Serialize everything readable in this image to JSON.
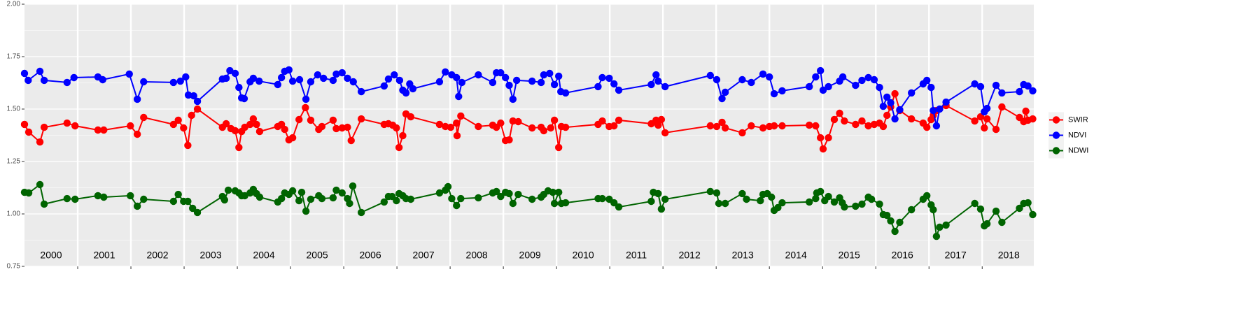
{
  "chart_data": {
    "type": "line",
    "xlim": [
      2000,
      2018.97
    ],
    "ylim": [
      0.75,
      2.0
    ],
    "yticks": [
      0.75,
      {
        "value": 1.0,
        "label": "1.00"
      },
      1.25,
      {
        "value": 1.5,
        "label": "1.50"
      },
      1.75,
      {
        "value": 2.0,
        "label": "2.00"
      }
    ],
    "yminor": [
      0.875,
      1.125,
      1.375,
      1.625,
      1.875
    ],
    "year_breaks": [
      2001,
      2002,
      2003,
      2004,
      2005,
      2006,
      2007,
      2008,
      2009,
      2010,
      2011,
      2012,
      2013,
      2014,
      2015,
      2016,
      2017,
      2018
    ],
    "xticks": [
      {
        "value": 2000.5,
        "label": "2000"
      },
      {
        "value": 2001.5,
        "label": "2001"
      },
      {
        "value": 2002.5,
        "label": "2002"
      },
      {
        "value": 2003.5,
        "label": "2003"
      },
      {
        "value": 2004.5,
        "label": "2004"
      },
      {
        "value": 2005.5,
        "label": "2005"
      },
      {
        "value": 2006.5,
        "label": "2006"
      },
      {
        "value": 2007.5,
        "label": "2007"
      },
      {
        "value": 2008.5,
        "label": "2008"
      },
      {
        "value": 2009.5,
        "label": "2009"
      },
      {
        "value": 2010.5,
        "label": "2010"
      },
      {
        "value": 2011.5,
        "label": "2011"
      },
      {
        "value": 2012.5,
        "label": "2012"
      },
      {
        "value": 2013.5,
        "label": "2013"
      },
      {
        "value": 2014.5,
        "label": "2014"
      },
      {
        "value": 2015.5,
        "label": "2015"
      },
      {
        "value": 2016.5,
        "label": "2016"
      },
      {
        "value": 2017.5,
        "label": "2017"
      },
      {
        "value": 2018.5,
        "label": "2018"
      }
    ],
    "grid": true,
    "legend": "right",
    "series": [
      {
        "name": "SWIR",
        "color": "#ff0000",
        "x": [
          2000,
          2000.08,
          2000.29,
          2000.37,
          2000.8,
          2000.95,
          2001.38,
          2001.49,
          2001.99,
          2002.12,
          2002.24,
          2002.8,
          2002.89,
          2002.99,
          2003.07,
          2003.14,
          2003.25,
          2003.72,
          2003.79,
          2003.88,
          2003.96,
          2004.03,
          2004.08,
          2004.14,
          2004.24,
          2004.3,
          2004.36,
          2004.42,
          2004.76,
          2004.83,
          2004.89,
          2004.97,
          2005.04,
          2005.16,
          2005.28,
          2005.38,
          2005.53,
          2005.59,
          2005.8,
          2005.86,
          2005.97,
          2006.07,
          2006.14,
          2006.33,
          2006.76,
          2006.84,
          2006.92,
          2006.99,
          2007.04,
          2007.11,
          2007.17,
          2007.26,
          2007.8,
          2007.91,
          2008.01,
          2008.12,
          2008.13,
          2008.2,
          2008.53,
          2008.8,
          2008.87,
          2008.95,
          2009.04,
          2009.11,
          2009.18,
          2009.28,
          2009.54,
          2009.71,
          2009.76,
          2009.89,
          2009.96,
          2010.04,
          2010.09,
          2010.17,
          2010.78,
          2010.86,
          2010.99,
          2011.08,
          2011.17,
          2011.78,
          2011.87,
          2011.91,
          2011.97,
          2012.04,
          2012.89,
          2013.01,
          2013.11,
          2013.17,
          2013.49,
          2013.66,
          2013.88,
          2014,
          2014.09,
          2014.24,
          2014.75,
          2014.87,
          2014.96,
          2015.01,
          2015.11,
          2015.22,
          2015.32,
          2015.41,
          2015.62,
          2015.74,
          2015.86,
          2015.97,
          2016.07,
          2016.14,
          2016.21,
          2016.28,
          2016.36,
          2016.45,
          2016.67,
          2016.89,
          2016.96,
          2017.04,
          2017.08,
          2017.14,
          2017.32,
          2017.86,
          2017.97,
          2018.04,
          2018.09,
          2018.26,
          2018.37,
          2018.7,
          2018.78,
          2018.82,
          2018.86,
          2018.95
        ],
        "values": [
          1.427,
          1.39,
          1.343,
          1.413,
          1.433,
          1.42,
          1.4,
          1.4,
          1.42,
          1.38,
          1.46,
          1.427,
          1.447,
          1.41,
          1.327,
          1.47,
          1.5,
          1.413,
          1.43,
          1.407,
          1.397,
          1.317,
          1.393,
          1.413,
          1.427,
          1.453,
          1.427,
          1.393,
          1.417,
          1.427,
          1.403,
          1.353,
          1.363,
          1.45,
          1.507,
          1.447,
          1.403,
          1.417,
          1.447,
          1.407,
          1.41,
          1.413,
          1.35,
          1.453,
          1.427,
          1.43,
          1.423,
          1.41,
          1.317,
          1.373,
          1.477,
          1.463,
          1.427,
          1.417,
          1.413,
          1.433,
          1.373,
          1.467,
          1.417,
          1.423,
          1.413,
          1.433,
          1.35,
          1.353,
          1.443,
          1.44,
          1.41,
          1.413,
          1.397,
          1.41,
          1.447,
          1.317,
          1.417,
          1.413,
          1.427,
          1.443,
          1.417,
          1.42,
          1.447,
          1.43,
          1.447,
          1.423,
          1.45,
          1.387,
          1.42,
          1.417,
          1.437,
          1.41,
          1.387,
          1.42,
          1.41,
          1.417,
          1.42,
          1.42,
          1.423,
          1.42,
          1.363,
          1.31,
          1.363,
          1.45,
          1.48,
          1.443,
          1.427,
          1.443,
          1.42,
          1.427,
          1.433,
          1.417,
          1.47,
          1.51,
          1.573,
          1.493,
          1.453,
          1.433,
          1.413,
          1.45,
          1.47,
          1.493,
          1.517,
          1.443,
          1.463,
          1.41,
          1.453,
          1.403,
          1.51,
          1.46,
          1.44,
          1.49,
          1.447,
          1.453
        ]
      },
      {
        "name": "NDVI",
        "color": "#0000ff",
        "x": [
          2000,
          2000.07,
          2000.29,
          2000.37,
          2000.8,
          2000.93,
          2001.38,
          2001.47,
          2001.97,
          2002.12,
          2002.24,
          2002.8,
          2002.93,
          2003.03,
          2003.08,
          2003.18,
          2003.25,
          2003.72,
          2003.79,
          2003.86,
          2003.96,
          2004.03,
          2004.08,
          2004.13,
          2004.24,
          2004.3,
          2004.41,
          2004.76,
          2004.83,
          2004.89,
          2004.97,
          2005.04,
          2005.17,
          2005.29,
          2005.38,
          2005.51,
          2005.62,
          2005.8,
          2005.86,
          2005.97,
          2006.07,
          2006.18,
          2006.33,
          2006.76,
          2006.84,
          2006.95,
          2007.05,
          2007.11,
          2007.17,
          2007.24,
          2007.3,
          2007.8,
          2007.91,
          2008.03,
          2008.12,
          2008.16,
          2008.22,
          2008.53,
          2008.8,
          2008.87,
          2008.95,
          2009.04,
          2009.11,
          2009.18,
          2009.25,
          2009.54,
          2009.71,
          2009.76,
          2009.87,
          2009.96,
          2010.04,
          2010.08,
          2010.17,
          2010.78,
          2010.86,
          2010.99,
          2011.08,
          2011.17,
          2011.78,
          2011.87,
          2011.91,
          2012.04,
          2012.89,
          2013.01,
          2013.11,
          2013.17,
          2013.49,
          2013.66,
          2013.88,
          2014,
          2014.09,
          2014.24,
          2014.75,
          2014.87,
          2014.96,
          2015.01,
          2015.11,
          2015.32,
          2015.38,
          2015.62,
          2015.74,
          2015.86,
          2015.97,
          2016.07,
          2016.14,
          2016.21,
          2016.28,
          2016.36,
          2016.45,
          2016.67,
          2016.89,
          2016.96,
          2017.04,
          2017.08,
          2017.14,
          2017.2,
          2017.32,
          2017.86,
          2017.97,
          2018.04,
          2018.09,
          2018.26,
          2018.37,
          2018.7,
          2018.78,
          2018.86,
          2018.95
        ],
        "values": [
          1.67,
          1.637,
          1.68,
          1.637,
          1.627,
          1.65,
          1.653,
          1.64,
          1.667,
          1.547,
          1.63,
          1.627,
          1.633,
          1.653,
          1.567,
          1.563,
          1.537,
          1.643,
          1.647,
          1.683,
          1.67,
          1.603,
          1.553,
          1.55,
          1.63,
          1.647,
          1.633,
          1.617,
          1.65,
          1.68,
          1.687,
          1.633,
          1.64,
          1.547,
          1.63,
          1.663,
          1.647,
          1.637,
          1.667,
          1.673,
          1.647,
          1.63,
          1.583,
          1.61,
          1.643,
          1.663,
          1.637,
          1.59,
          1.577,
          1.62,
          1.597,
          1.63,
          1.677,
          1.663,
          1.65,
          1.56,
          1.627,
          1.663,
          1.627,
          1.673,
          1.673,
          1.65,
          1.613,
          1.547,
          1.637,
          1.633,
          1.627,
          1.663,
          1.67,
          1.617,
          1.657,
          1.583,
          1.577,
          1.607,
          1.65,
          1.647,
          1.62,
          1.59,
          1.617,
          1.663,
          1.633,
          1.607,
          1.66,
          1.64,
          1.55,
          1.58,
          1.64,
          1.627,
          1.667,
          1.653,
          1.573,
          1.587,
          1.607,
          1.653,
          1.683,
          1.59,
          1.607,
          1.633,
          1.653,
          1.613,
          1.637,
          1.65,
          1.64,
          1.603,
          1.513,
          1.557,
          1.53,
          1.453,
          1.497,
          1.577,
          1.62,
          1.637,
          1.603,
          1.493,
          1.42,
          1.5,
          1.533,
          1.62,
          1.607,
          1.487,
          1.503,
          1.613,
          1.577,
          1.583,
          1.617,
          1.61,
          1.587
        ]
      },
      {
        "name": "NDWI",
        "color": "#006400",
        "x": [
          2000,
          2000.08,
          2000.29,
          2000.37,
          2000.8,
          2000.95,
          2001.38,
          2001.49,
          2001.99,
          2002.12,
          2002.24,
          2002.8,
          2002.89,
          2002.99,
          2003.07,
          2003.16,
          2003.25,
          2003.72,
          2003.76,
          2003.83,
          2003.96,
          2004.03,
          2004.08,
          2004.14,
          2004.24,
          2004.3,
          2004.36,
          2004.42,
          2004.76,
          2004.83,
          2004.89,
          2004.97,
          2005.04,
          2005.16,
          2005.21,
          2005.29,
          2005.38,
          2005.53,
          2005.59,
          2005.8,
          2005.86,
          2005.97,
          2006.07,
          2006.11,
          2006.17,
          2006.33,
          2006.76,
          2006.84,
          2006.91,
          2006.99,
          2007.04,
          2007.11,
          2007.17,
          2007.26,
          2007.8,
          2007.91,
          2007.96,
          2008.03,
          2008.12,
          2008.2,
          2008.53,
          2008.8,
          2008.87,
          2008.95,
          2009.04,
          2009.11,
          2009.18,
          2009.28,
          2009.54,
          2009.71,
          2009.76,
          2009.84,
          2009.93,
          2009.96,
          2010.04,
          2010.09,
          2010.17,
          2010.78,
          2010.86,
          2010.99,
          2011.08,
          2011.17,
          2011.78,
          2011.82,
          2011.91,
          2011.97,
          2012.04,
          2012.89,
          2013.01,
          2013.05,
          2013.17,
          2013.49,
          2013.57,
          2013.83,
          2013.88,
          2013.96,
          2014.04,
          2014.09,
          2014.16,
          2014.24,
          2014.75,
          2014.87,
          2014.89,
          2014.96,
          2015.04,
          2015.11,
          2015.22,
          2015.32,
          2015.37,
          2015.41,
          2015.62,
          2015.74,
          2015.86,
          2015.92,
          2016.07,
          2016.14,
          2016.21,
          2016.28,
          2016.36,
          2016.45,
          2016.67,
          2016.89,
          2016.96,
          2017.04,
          2017.08,
          2017.14,
          2017.2,
          2017.32,
          2017.86,
          2017.97,
          2018.04,
          2018.09,
          2018.26,
          2018.37,
          2018.7,
          2018.78,
          2018.86,
          2018.95
        ],
        "values": [
          1.103,
          1.1,
          1.14,
          1.047,
          1.073,
          1.07,
          1.087,
          1.08,
          1.087,
          1.037,
          1.07,
          1.06,
          1.093,
          1.06,
          1.06,
          1.027,
          1.007,
          1.083,
          1.067,
          1.113,
          1.11,
          1.1,
          1.087,
          1.087,
          1.1,
          1.117,
          1.097,
          1.08,
          1.057,
          1.073,
          1.1,
          1.093,
          1.11,
          1.063,
          1.103,
          1.013,
          1.07,
          1.087,
          1.073,
          1.077,
          1.113,
          1.1,
          1.073,
          1.05,
          1.133,
          1.007,
          1.057,
          1.083,
          1.083,
          1.063,
          1.097,
          1.087,
          1.073,
          1.07,
          1.1,
          1.113,
          1.13,
          1.073,
          1.04,
          1.073,
          1.077,
          1.1,
          1.107,
          1.083,
          1.103,
          1.097,
          1.05,
          1.093,
          1.07,
          1.08,
          1.093,
          1.11,
          1.103,
          1.05,
          1.103,
          1.05,
          1.053,
          1.073,
          1.073,
          1.07,
          1.053,
          1.033,
          1.06,
          1.103,
          1.097,
          1.023,
          1.07,
          1.107,
          1.1,
          1.05,
          1.05,
          1.097,
          1.07,
          1.063,
          1.093,
          1.097,
          1.08,
          1.017,
          1.03,
          1.053,
          1.057,
          1.073,
          1.1,
          1.107,
          1.063,
          1.083,
          1.057,
          1.077,
          1.053,
          1.033,
          1.037,
          1.047,
          1.08,
          1.07,
          1.047,
          0.997,
          0.993,
          0.967,
          0.917,
          0.96,
          1.02,
          1.07,
          1.087,
          1.043,
          1.02,
          0.893,
          0.937,
          0.947,
          1.05,
          1.023,
          0.943,
          0.953,
          1.013,
          0.96,
          1.027,
          1.05,
          1.053,
          0.997
        ]
      }
    ]
  }
}
